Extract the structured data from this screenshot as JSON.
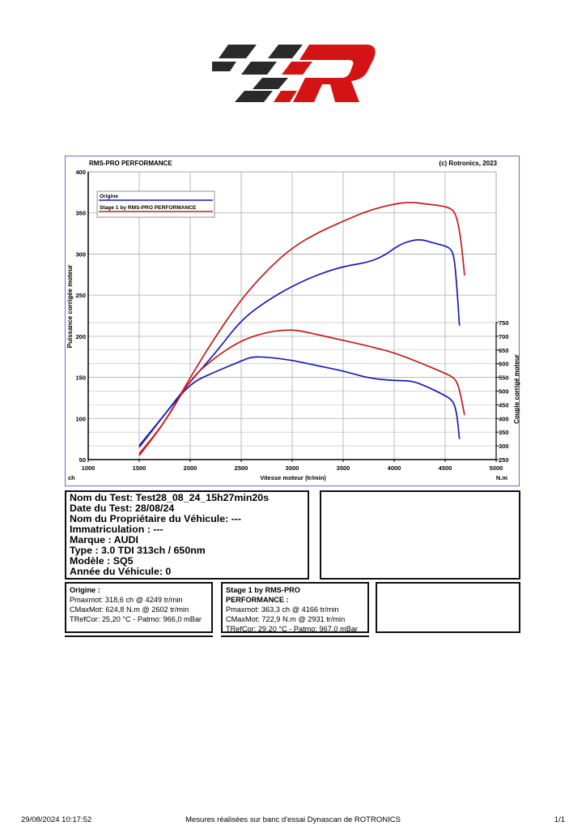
{
  "header": {
    "logo": "RMS-PRO PERFORMANCE logo (checkered R)"
  },
  "chart_data": {
    "type": "line",
    "title_left": "RMS-PRO PERFORMANCE",
    "title_right": "(c) Rotronics, 2023",
    "xlabel": "Vitesse moteur (tr/min)",
    "ylabel": "Puissance corrigée moteur",
    "y2label": "Couple corrigé moteur",
    "x_unit": "ch",
    "y2_unit": "N.m",
    "xlim": [
      1000,
      5000
    ],
    "ylim": [
      50,
      400
    ],
    "y2lim": [
      250,
      750
    ],
    "x_ticks": [
      "1000",
      "1500",
      "2000",
      "2500",
      "3000",
      "3500",
      "4000",
      "4500",
      "5000"
    ],
    "y_ticks": [
      "50",
      "100",
      "150",
      "200",
      "250",
      "300",
      "350",
      "400"
    ],
    "y2_ticks": [
      "250",
      "300",
      "350",
      "400",
      "450",
      "500",
      "550",
      "600",
      "650",
      "700",
      "750"
    ],
    "grid": true,
    "legend_position": "top-left",
    "series": [
      {
        "name": "Origine",
        "color": "#1a1ab8",
        "kind": "power",
        "x": [
          1500,
          1750,
          2000,
          2250,
          2500,
          2750,
          3000,
          3250,
          3500,
          3750,
          3900,
          4000,
          4100,
          4249,
          4400,
          4500,
          4560,
          4590,
          4615,
          4640
        ],
        "y": [
          65,
          105,
          145,
          180,
          220,
          243,
          261,
          275,
          285,
          290,
          298,
          307,
          314,
          318.6,
          313,
          310,
          306,
          295,
          260,
          213
        ]
      },
      {
        "name": "Stage 1 by RMS-PRO PERFORMANCE",
        "color": "#c41a1a",
        "kind": "power",
        "x": [
          1500,
          1750,
          2000,
          2250,
          2500,
          2750,
          3000,
          3250,
          3500,
          3750,
          4000,
          4166,
          4300,
          4450,
          4550,
          4600,
          4640,
          4670,
          4690
        ],
        "y": [
          55,
          95,
          150,
          200,
          245,
          280,
          308,
          326,
          340,
          353,
          361,
          363.3,
          361,
          359,
          356,
          350,
          330,
          300,
          274
        ]
      },
      {
        "name": "Origine",
        "color": "#1a1ab8",
        "kind": "torque",
        "x": [
          1500,
          1750,
          2000,
          2250,
          2500,
          2602,
          2750,
          3000,
          3250,
          3500,
          3750,
          4000,
          4166,
          4300,
          4500,
          4570,
          4600,
          4620,
          4640
        ],
        "y": [
          301,
          415,
          529,
          571,
          610,
          624.8,
          624,
          613,
          592,
          574,
          547,
          538,
          538,
          520,
          484,
          466,
          440,
          400,
          325
        ]
      },
      {
        "name": "Stage 1 by RMS-PRO PERFORMANCE",
        "color": "#c41a1a",
        "kind": "torque",
        "x": [
          1500,
          1750,
          2000,
          2250,
          2500,
          2750,
          2931,
          3050,
          3250,
          3500,
          3750,
          4000,
          4250,
          4500,
          4580,
          4620,
          4650,
          4690
        ],
        "y": [
          271,
          385,
          544,
          625,
          685,
          715,
          722.9,
          722,
          706,
          685,
          664,
          640,
          604,
          565,
          550,
          530,
          490,
          412
        ]
      }
    ]
  },
  "test_info": {
    "lines": [
      "Nom du Test: Test28_08_24_15h27min20s",
      "Date du Test: 28/08/24",
      "Nom du Propriétaire du Véhicule: ---",
      "Immatriculation  : ---",
      "Marque  : AUDI",
      "Type  : 3.0 TDI 313ch / 650nm",
      "Modèle  : SQ5",
      "Année du Véhicule: 0"
    ]
  },
  "results": [
    {
      "title": "Origine :",
      "lines": [
        "Pmaxmot: 318,6 ch @ 4249 tr/min",
        "CMaxMot: 624,8 N.m @ 2602 tr/min",
        "TRefCor: 25,20 °C - Patmo: 966,0 mBar"
      ]
    },
    {
      "title": "Stage 1 by RMS-PRO PERFORMANCE :",
      "title_l1": "Stage 1 by RMS-PRO",
      "title_l2": "PERFORMANCE :",
      "lines": [
        "Pmaxmot: 363,3 ch @ 4166 tr/min",
        "CMaxMot: 722,9 N.m @ 2931 tr/min",
        "TRefCor: 29,20 °C - Patmo: 967,0 mBar"
      ]
    }
  ],
  "footer": {
    "datetime": "29/08/2024 10:17:52",
    "center": "Mesures réalisées sur banc d'essai Dynascan de ROTRONICS",
    "page": "1/1"
  }
}
